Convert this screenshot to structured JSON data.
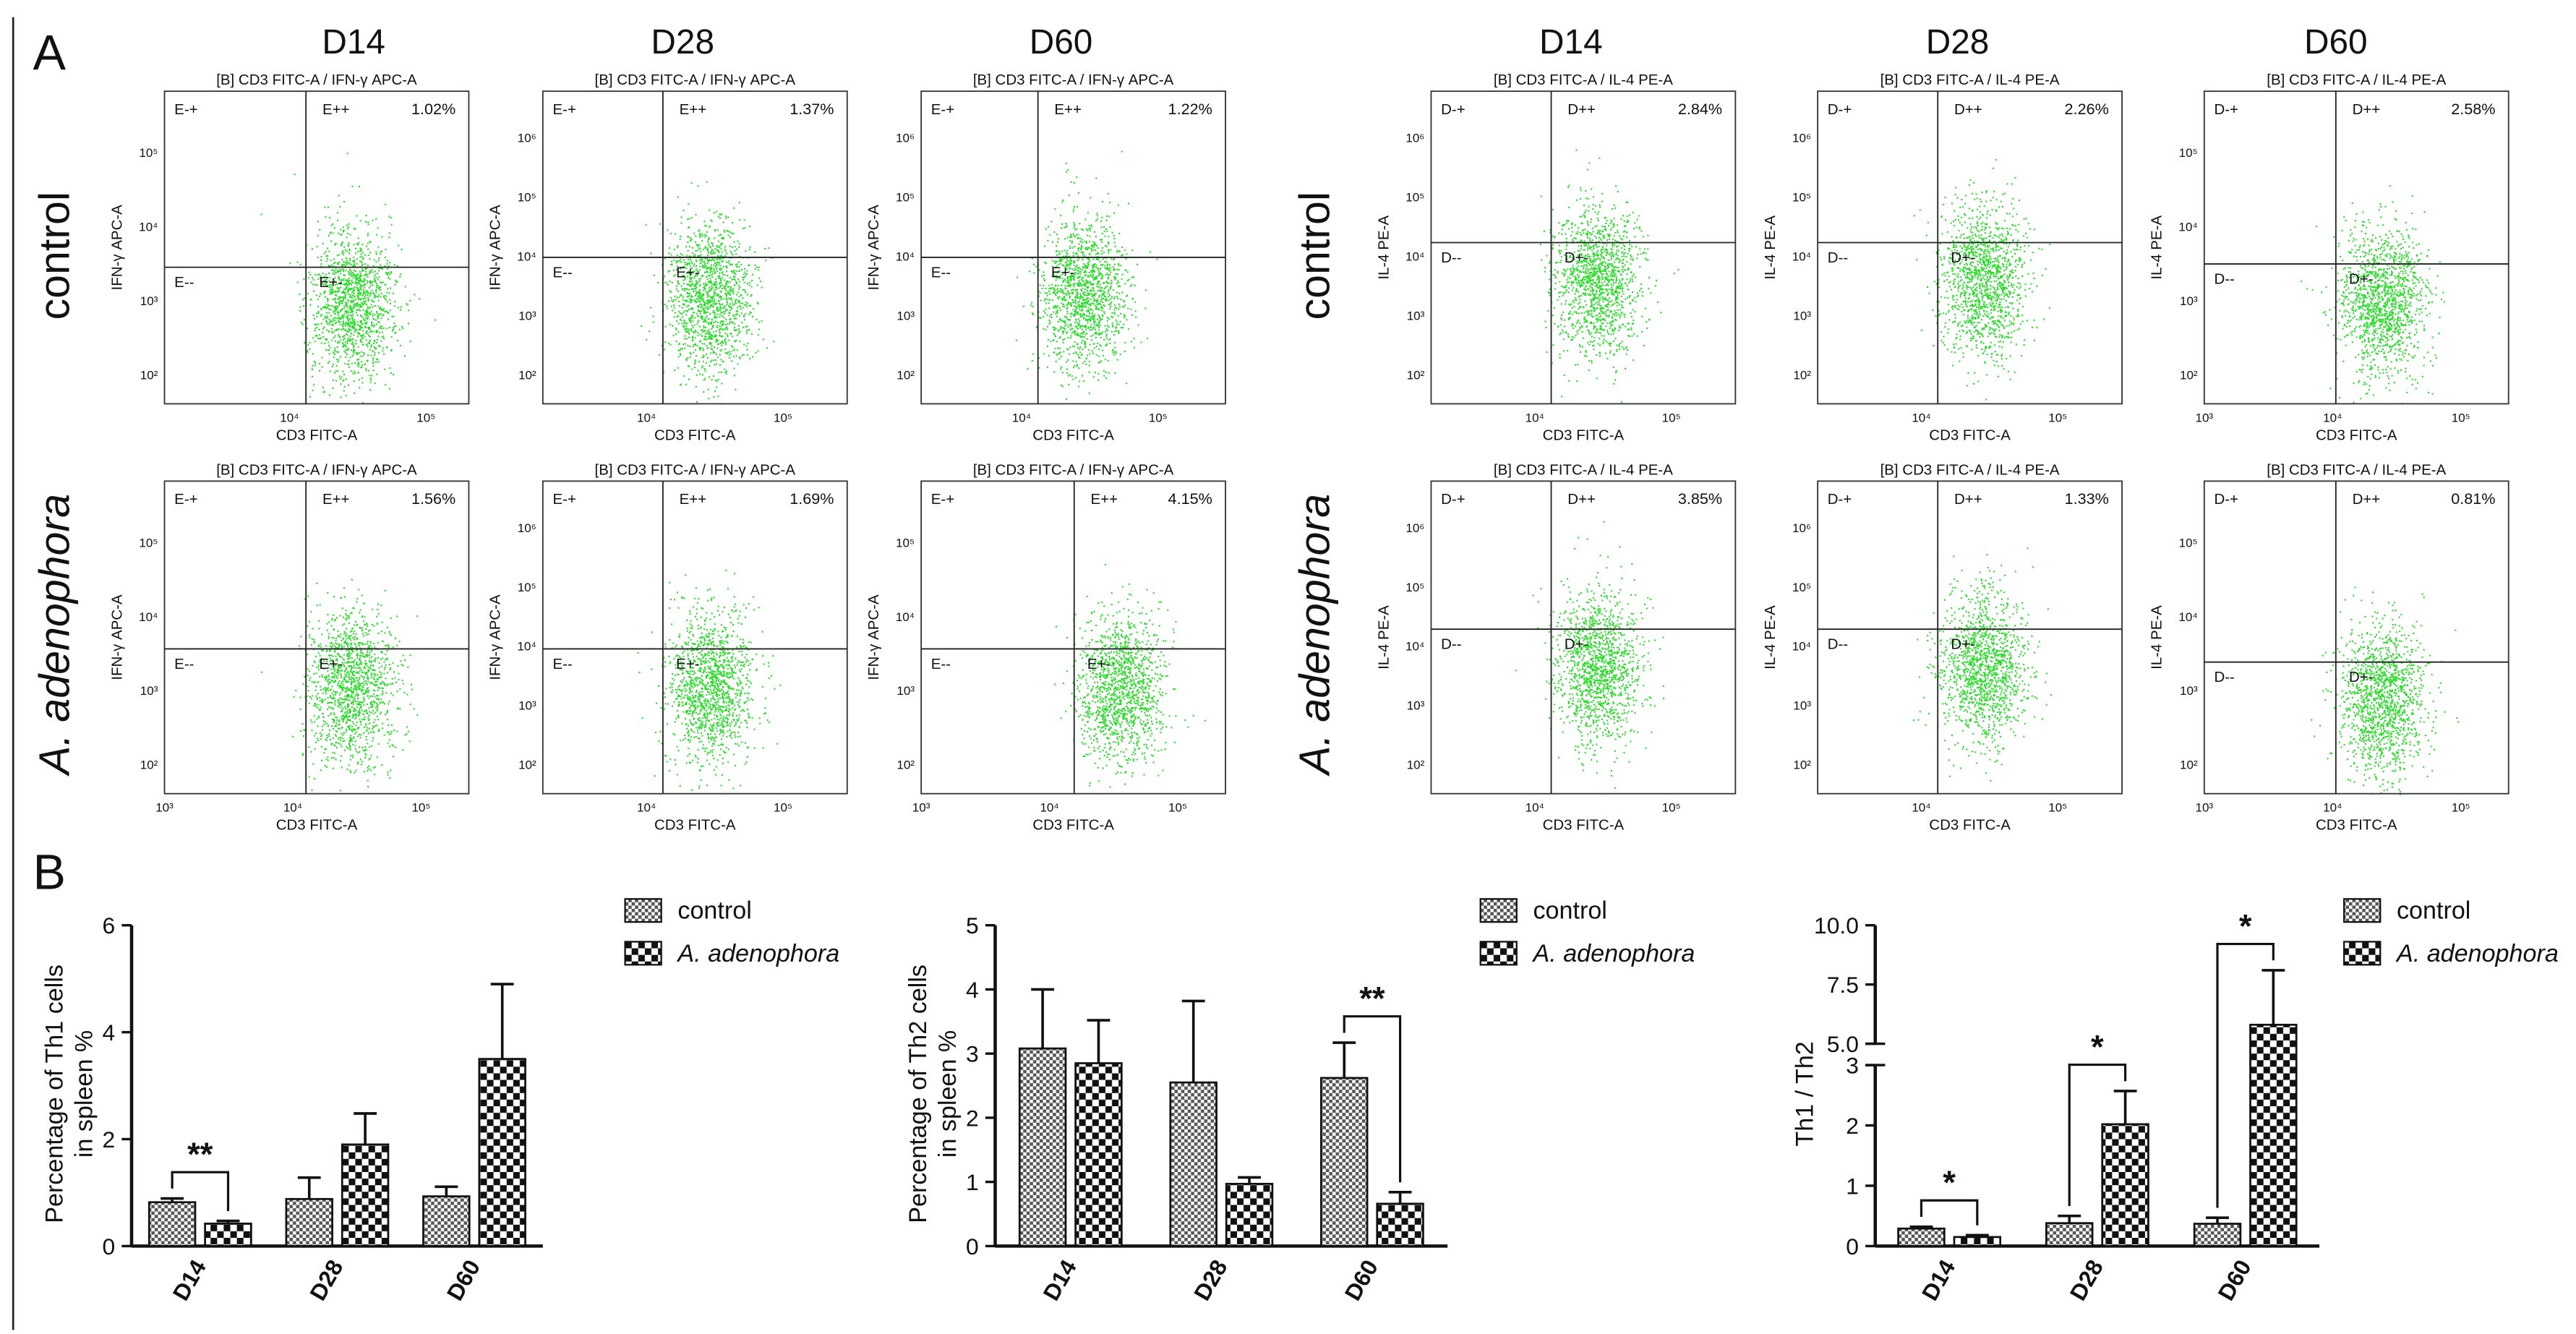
{
  "figure": {
    "panel_a_label": "A",
    "panel_b_label": "B",
    "column_titles": [
      "D14",
      "D28",
      "D60"
    ],
    "row_titles": {
      "control": "control",
      "treated": "A. adenophora"
    }
  },
  "chart_data": [
    {
      "type": "scatter",
      "panel": "A-left",
      "title": "Th1 (IFN-γ) flow cytometry",
      "plots": [
        {
          "row": "control",
          "day": "D14",
          "header": "[B] CD3 FITC-A / IFN-γ APC-A",
          "xlabel": "CD3 FITC-A",
          "ylabel": "IFN-γ APC-A",
          "xticks": [
            "10⁴",
            "10⁵"
          ],
          "yticks": [
            "10²",
            "10³",
            "10⁴",
            "10⁵"
          ],
          "quadrants": [
            "E-+",
            "E++",
            "E--",
            "E+-"
          ],
          "percent": "1.02%"
        },
        {
          "row": "control",
          "day": "D28",
          "header": "[B] CD3 FITC-A / IFN-γ APC-A",
          "xlabel": "CD3 FITC-A",
          "ylabel": "IFN-γ APC-A",
          "xticks": [
            "10⁴",
            "10⁵"
          ],
          "yticks": [
            "10²",
            "10³",
            "10⁴",
            "10⁵",
            "10⁶"
          ],
          "quadrants": [
            "E-+",
            "E++",
            "E--",
            "E+-"
          ],
          "percent": "1.37%"
        },
        {
          "row": "control",
          "day": "D60",
          "header": "[B] CD3 FITC-A / IFN-γ APC-A",
          "xlabel": "CD3 FITC-A",
          "ylabel": "IFN-γ APC-A",
          "xticks": [
            "10⁴",
            "10⁵"
          ],
          "yticks": [
            "10²",
            "10³",
            "10⁴",
            "10⁵",
            "10⁶"
          ],
          "quadrants": [
            "E-+",
            "E++",
            "E--",
            "E+-"
          ],
          "percent": "1.22%"
        },
        {
          "row": "treated",
          "day": "D14",
          "header": "[B] CD3 FITC-A / IFN-γ APC-A",
          "xlabel": "CD3 FITC-A",
          "ylabel": "IFN-γ APC-A",
          "xticks": [
            "10³",
            "10⁴",
            "10⁵"
          ],
          "yticks": [
            "10²",
            "10³",
            "10⁴",
            "10⁵"
          ],
          "quadrants": [
            "E-+",
            "E++",
            "E--",
            "E+-"
          ],
          "percent": "1.56%"
        },
        {
          "row": "treated",
          "day": "D28",
          "header": "[B] CD3 FITC-A / IFN-γ APC-A",
          "xlabel": "CD3 FITC-A",
          "ylabel": "IFN-γ APC-A",
          "xticks": [
            "10⁴",
            "10⁵"
          ],
          "yticks": [
            "10²",
            "10³",
            "10⁴",
            "10⁵",
            "10⁶"
          ],
          "quadrants": [
            "E-+",
            "E++",
            "E--",
            "E+-"
          ],
          "percent": "1.69%"
        },
        {
          "row": "treated",
          "day": "D60",
          "header": "[B] CD3 FITC-A / IFN-γ APC-A",
          "xlabel": "CD3 FITC-A",
          "ylabel": "IFN-γ APC-A",
          "xticks": [
            "10³",
            "10⁴",
            "10⁵"
          ],
          "yticks": [
            "10²",
            "10³",
            "10⁴",
            "10⁵"
          ],
          "quadrants": [
            "E-+",
            "E++",
            "E--",
            "E+-"
          ],
          "percent": "4.15%"
        }
      ]
    },
    {
      "type": "scatter",
      "panel": "A-right",
      "title": "Th2 (IL-4) flow cytometry",
      "plots": [
        {
          "row": "control",
          "day": "D14",
          "header": "[B] CD3 FITC-A / IL-4 PE-A",
          "xlabel": "CD3 FITC-A",
          "ylabel": "IL-4 PE-A",
          "xticks": [
            "10⁴",
            "10⁵"
          ],
          "yticks": [
            "10²",
            "10³",
            "10⁴",
            "10⁵",
            "10⁶"
          ],
          "quadrants": [
            "D-+",
            "D++",
            "D--",
            "D+-"
          ],
          "percent": "2.84%"
        },
        {
          "row": "control",
          "day": "D28",
          "header": "[B] CD3 FITC-A / IL-4 PE-A",
          "xlabel": "CD3 FITC-A",
          "ylabel": "IL-4 PE-A",
          "xticks": [
            "10⁴",
            "10⁵"
          ],
          "yticks": [
            "10²",
            "10³",
            "10⁴",
            "10⁵",
            "10⁶"
          ],
          "quadrants": [
            "D-+",
            "D++",
            "D--",
            "D+-"
          ],
          "percent": "2.26%"
        },
        {
          "row": "control",
          "day": "D60",
          "header": "[B] CD3 FITC-A / IL-4 PE-A",
          "xlabel": "CD3 FITC-A",
          "ylabel": "IL-4 PE-A",
          "xticks": [
            "10³",
            "10⁴",
            "10⁵"
          ],
          "yticks": [
            "10²",
            "10³",
            "10⁴",
            "10⁵"
          ],
          "quadrants": [
            "D-+",
            "D++",
            "D--",
            "D+-"
          ],
          "percent": "2.58%"
        },
        {
          "row": "treated",
          "day": "D14",
          "header": "[B] CD3 FITC-A / IL-4 PE-A",
          "xlabel": "CD3 FITC-A",
          "ylabel": "IL-4 PE-A",
          "xticks": [
            "10⁴",
            "10⁵"
          ],
          "yticks": [
            "10²",
            "10³",
            "10⁴",
            "10⁵",
            "10⁶"
          ],
          "quadrants": [
            "D-+",
            "D++",
            "D--",
            "D+-"
          ],
          "percent": "3.85%"
        },
        {
          "row": "treated",
          "day": "D28",
          "header": "[B] CD3 FITC-A / IL-4 PE-A",
          "xlabel": "CD3 FITC-A",
          "ylabel": "IL-4 PE-A",
          "xticks": [
            "10⁴",
            "10⁵"
          ],
          "yticks": [
            "10²",
            "10³",
            "10⁴",
            "10⁵",
            "10⁶"
          ],
          "quadrants": [
            "D-+",
            "D++",
            "D--",
            "D+-"
          ],
          "percent": "1.33%"
        },
        {
          "row": "treated",
          "day": "D60",
          "header": "[B] CD3 FITC-A / IL-4 PE-A",
          "xlabel": "CD3 FITC-A",
          "ylabel": "IL-4 PE-A",
          "xticks": [
            "10³",
            "10⁴",
            "10⁵"
          ],
          "yticks": [
            "10²",
            "10³",
            "10⁴",
            "10⁵"
          ],
          "quadrants": [
            "D-+",
            "D++",
            "D--",
            "D+-"
          ],
          "percent": "0.81%"
        }
      ]
    },
    {
      "type": "bar",
      "panel": "B-1",
      "title": "",
      "xlabel": "",
      "ylabel": [
        "Percentage of Th1 cells",
        "in spleen %"
      ],
      "categories": [
        "D14",
        "D28",
        "D60"
      ],
      "ylim": [
        0,
        6
      ],
      "yticks": [
        "0",
        "2",
        "4",
        "6"
      ],
      "series": [
        {
          "name": "control",
          "values": [
            0.82,
            0.88,
            0.93
          ],
          "errors": [
            0.07,
            0.4,
            0.18
          ]
        },
        {
          "name": "A. adenophora",
          "values": [
            0.42,
            1.9,
            3.5
          ],
          "errors": [
            0.05,
            0.58,
            1.4
          ]
        }
      ],
      "significance": [
        {
          "category": "D14",
          "label": "**"
        }
      ]
    },
    {
      "type": "bar",
      "panel": "B-2",
      "title": "",
      "xlabel": "",
      "ylabel": [
        "Percentage of Th2 cells",
        "in spleen %"
      ],
      "categories": [
        "D14",
        "D28",
        "D60"
      ],
      "ylim": [
        0,
        5
      ],
      "yticks": [
        "0",
        "1",
        "2",
        "3",
        "4",
        "5"
      ],
      "series": [
        {
          "name": "control",
          "values": [
            3.08,
            2.55,
            2.62
          ],
          "errors": [
            0.92,
            1.27,
            0.55
          ]
        },
        {
          "name": "A. adenophora",
          "values": [
            2.85,
            0.97,
            0.66
          ],
          "errors": [
            0.67,
            0.1,
            0.18
          ]
        }
      ],
      "significance": [
        {
          "category": "D60",
          "label": "**"
        }
      ]
    },
    {
      "type": "bar",
      "panel": "B-3",
      "title": "",
      "xlabel": "",
      "ylabel": [
        "Th1 / Th2"
      ],
      "categories": [
        "D14",
        "D28",
        "D60"
      ],
      "ylim": [
        0,
        10
      ],
      "axis_break": [
        3,
        5
      ],
      "yticks_lower": [
        "0",
        "1",
        "2",
        "3"
      ],
      "yticks_upper": [
        "5.0",
        "7.5",
        "10.0"
      ],
      "series": [
        {
          "name": "control",
          "values": [
            0.29,
            0.38,
            0.37
          ],
          "errors": [
            0.03,
            0.12,
            0.1
          ]
        },
        {
          "name": "A. adenophora",
          "values": [
            0.15,
            2.02,
            5.8
          ],
          "errors": [
            0.03,
            0.55,
            2.3
          ]
        }
      ],
      "significance": [
        {
          "category": "D14",
          "label": "*"
        },
        {
          "category": "D28",
          "label": "*"
        },
        {
          "category": "D60",
          "label": "*"
        }
      ]
    }
  ],
  "colors": {
    "dots": "#22dd22",
    "bar_edge": "#111111",
    "bar_fill": "#9a9a9a"
  }
}
